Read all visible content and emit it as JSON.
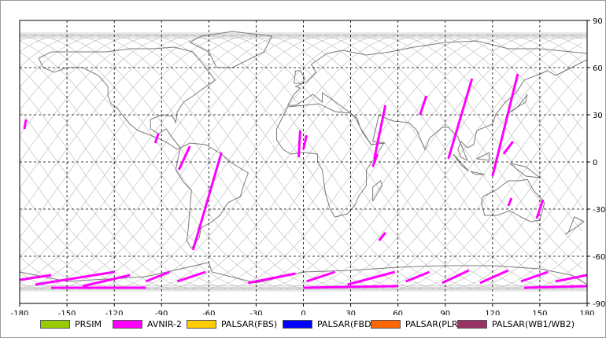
{
  "map": {
    "x_ticks": [
      -180,
      -150,
      -120,
      -90,
      -60,
      -30,
      0,
      30,
      60,
      90,
      120,
      150,
      180
    ],
    "y_ticks": [
      90,
      60,
      30,
      0,
      -30,
      -60,
      -90
    ],
    "lon_range": [
      -180,
      180
    ],
    "lat_range": [
      -90,
      90
    ],
    "grid": "dashed",
    "colors": {
      "background": "#ffffff",
      "coastline": "#7a7a7a",
      "orbit_tracks": "#c8c8c8",
      "grid": "#000000",
      "swath": "#ff00ff"
    },
    "swaths_lon_lat": [
      [
        [
          -176,
          27
        ],
        [
          -177,
          21
        ]
      ],
      [
        [
          -92,
          18
        ],
        [
          -94,
          12
        ]
      ],
      [
        [
          -72,
          10
        ],
        [
          -79,
          -5
        ]
      ],
      [
        [
          -52,
          6
        ],
        [
          -70,
          -56
        ]
      ],
      [
        [
          -2,
          20
        ],
        [
          -3,
          3
        ]
      ],
      [
        [
          2,
          17
        ],
        [
          0,
          8
        ]
      ],
      [
        [
          52,
          36
        ],
        [
          45,
          2
        ]
      ],
      [
        [
          47,
          5
        ],
        [
          44,
          -3
        ]
      ],
      [
        [
          52,
          -45
        ],
        [
          48,
          -50
        ]
      ],
      [
        [
          78,
          42
        ],
        [
          74,
          30
        ]
      ],
      [
        [
          107,
          53
        ],
        [
          92,
          2
        ]
      ],
      [
        [
          136,
          56
        ],
        [
          120,
          -9
        ]
      ],
      [
        [
          133,
          13
        ],
        [
          127,
          5
        ]
      ],
      [
        [
          132,
          -23
        ],
        [
          130,
          -28
        ]
      ],
      [
        [
          152,
          -24
        ],
        [
          148,
          -36
        ]
      ]
    ],
    "antarctic_swaths_lon_lat": [
      [
        [
          -180,
          -75
        ],
        [
          -160,
          -72
        ]
      ],
      [
        [
          -170,
          -78
        ],
        [
          -120,
          -70
        ]
      ],
      [
        [
          -140,
          -79
        ],
        [
          -110,
          -72
        ]
      ],
      [
        [
          -100,
          -76
        ],
        [
          -85,
          -70
        ]
      ],
      [
        [
          -80,
          -76
        ],
        [
          -62,
          -70
        ]
      ],
      [
        [
          -35,
          -77
        ],
        [
          -5,
          -71
        ]
      ],
      [
        [
          2,
          -76
        ],
        [
          20,
          -70
        ]
      ],
      [
        [
          28,
          -78
        ],
        [
          58,
          -70
        ]
      ],
      [
        [
          65,
          -76
        ],
        [
          80,
          -70
        ]
      ],
      [
        [
          88,
          -77
        ],
        [
          105,
          -69
        ]
      ],
      [
        [
          112,
          -77
        ],
        [
          130,
          -69
        ]
      ],
      [
        [
          138,
          -76
        ],
        [
          155,
          -70
        ]
      ],
      [
        [
          160,
          -76
        ],
        [
          180,
          -72
        ]
      ],
      [
        [
          -160,
          -80
        ],
        [
          -100,
          -80
        ]
      ],
      [
        [
          0,
          -80
        ],
        [
          60,
          -79
        ]
      ],
      [
        [
          140,
          -80
        ],
        [
          180,
          -79
        ]
      ]
    ]
  },
  "legend": [
    {
      "label": "PRSIM",
      "color": "#99cc00"
    },
    {
      "label": "AVNIR-2",
      "color": "#ff00ff"
    },
    {
      "label": "PALSAR(FBS)",
      "color": "#ffcc00"
    },
    {
      "label": "PALSAR(FBD)",
      "color": "#0000ff"
    },
    {
      "label": "PALSAR(PLR)",
      "color": "#ff6600"
    },
    {
      "label": "PALSAR(WB1/WB2)",
      "color": "#993366"
    }
  ]
}
